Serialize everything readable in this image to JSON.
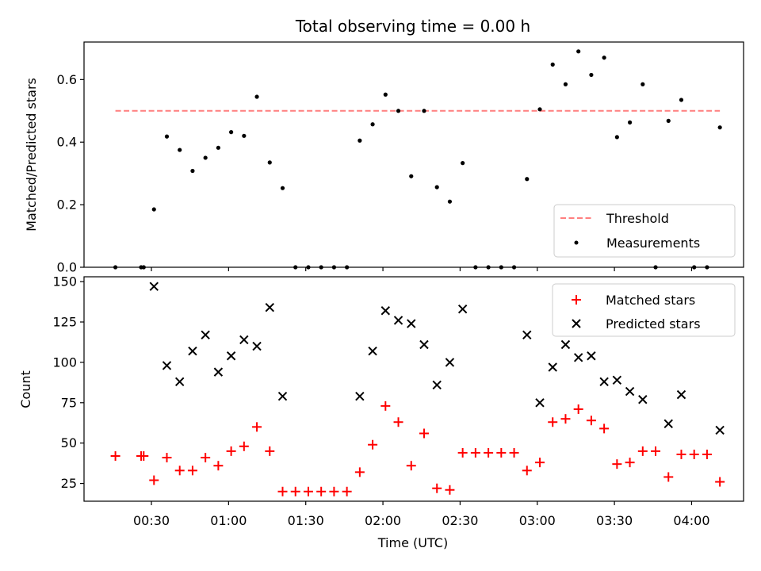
{
  "chart_data": [
    {
      "type": "scatter",
      "title": "Total observing time = 0.00 h",
      "xlabel": "",
      "ylabel": "Matched/Predicted stars",
      "ylim": [
        0,
        0.72
      ],
      "yticks": [
        "0.0",
        "0.2",
        "0.4",
        "0.6"
      ],
      "legend": {
        "position": "lower-right",
        "entries": [
          "Threshold",
          "Measurements"
        ]
      },
      "threshold": {
        "name": "Threshold",
        "value": 0.5,
        "x_start": "00:16",
        "x_end": "04:11",
        "color": "#ff7f7f"
      },
      "series": [
        {
          "name": "Measurements",
          "marker": "dot",
          "color": "#000000",
          "x": [
            "00:16",
            "00:26",
            "00:27",
            "00:31",
            "00:36",
            "00:41",
            "00:46",
            "00:51",
            "00:56",
            "01:01",
            "01:06",
            "01:11",
            "01:16",
            "01:21",
            "01:26",
            "01:31",
            "01:36",
            "01:41",
            "01:46",
            "01:51",
            "01:56",
            "02:01",
            "02:06",
            "02:11",
            "02:16",
            "02:21",
            "02:26",
            "02:31",
            "02:36",
            "02:41",
            "02:46",
            "02:51",
            "02:56",
            "03:01",
            "03:06",
            "03:11",
            "03:16",
            "03:21",
            "03:26",
            "03:31",
            "03:36",
            "03:41",
            "03:46",
            "03:51",
            "03:56",
            "04:01",
            "04:06",
            "04:11"
          ],
          "y": [
            0.0,
            0.0,
            0.0,
            0.185,
            0.418,
            0.375,
            0.308,
            0.35,
            0.382,
            0.432,
            0.42,
            0.545,
            0.335,
            0.253,
            0.0,
            0.0,
            0.0,
            0.0,
            0.0,
            0.405,
            0.457,
            0.552,
            0.5,
            0.291,
            0.5,
            0.256,
            0.21,
            0.333,
            0.0,
            0.0,
            0.0,
            0.0,
            0.282,
            0.505,
            0.648,
            0.585,
            0.69,
            0.615,
            0.67,
            0.416,
            0.463,
            0.585,
            0.0,
            0.468,
            0.535,
            0.0,
            0.0,
            0.447
          ]
        }
      ]
    },
    {
      "type": "scatter",
      "title": "",
      "xlabel": "Time (UTC)",
      "ylabel": "Count",
      "ylim": [
        14,
        153
      ],
      "yticks": [
        "25",
        "50",
        "75",
        "100",
        "125",
        "150"
      ],
      "xticks": [
        "00:30",
        "01:00",
        "01:30",
        "02:00",
        "02:30",
        "03:00",
        "03:30",
        "04:00"
      ],
      "legend": {
        "position": "top-right",
        "entries": [
          "Matched stars",
          "Predicted stars"
        ]
      },
      "series": [
        {
          "name": "Matched stars",
          "marker": "plus",
          "color": "#ff0000",
          "x": [
            "00:16",
            "00:26",
            "00:27",
            "00:31",
            "00:36",
            "00:41",
            "00:46",
            "00:51",
            "00:56",
            "01:01",
            "01:06",
            "01:11",
            "01:16",
            "01:21",
            "01:26",
            "01:31",
            "01:36",
            "01:41",
            "01:46",
            "01:51",
            "01:56",
            "02:01",
            "02:06",
            "02:11",
            "02:16",
            "02:21",
            "02:26",
            "02:31",
            "02:36",
            "02:41",
            "02:46",
            "02:51",
            "02:56",
            "03:01",
            "03:06",
            "03:11",
            "03:16",
            "03:21",
            "03:26",
            "03:31",
            "03:36",
            "03:41",
            "03:46",
            "03:51",
            "03:56",
            "04:01",
            "04:06",
            "04:11"
          ],
          "y": [
            42,
            42,
            42,
            27,
            41,
            33,
            33,
            41,
            36,
            45,
            48,
            60,
            45,
            20,
            20,
            20,
            20,
            20,
            20,
            32,
            49,
            73,
            63,
            36,
            56,
            22,
            21,
            44,
            44,
            44,
            44,
            44,
            33,
            38,
            63,
            65,
            71,
            64,
            59,
            37,
            38,
            45,
            45,
            29,
            43,
            43,
            43,
            26
          ]
        },
        {
          "name": "Predicted stars",
          "marker": "x",
          "color": "#000000",
          "x": [
            "00:31",
            "00:36",
            "00:41",
            "00:46",
            "00:51",
            "00:56",
            "01:01",
            "01:06",
            "01:11",
            "01:16",
            "01:21",
            "01:51",
            "01:56",
            "02:01",
            "02:06",
            "02:11",
            "02:16",
            "02:21",
            "02:26",
            "02:31",
            "02:56",
            "03:01",
            "03:06",
            "03:11",
            "03:16",
            "03:21",
            "03:26",
            "03:31",
            "03:36",
            "03:41",
            "03:51",
            "03:56",
            "04:11"
          ],
          "y": [
            147,
            98,
            88,
            107,
            117,
            94,
            104,
            114,
            110,
            134,
            79,
            79,
            107,
            132,
            126,
            124,
            111,
            86,
            100,
            133,
            117,
            75,
            97,
            111,
            103,
            104,
            88,
            89,
            82,
            77,
            62,
            80,
            58
          ]
        }
      ]
    }
  ]
}
